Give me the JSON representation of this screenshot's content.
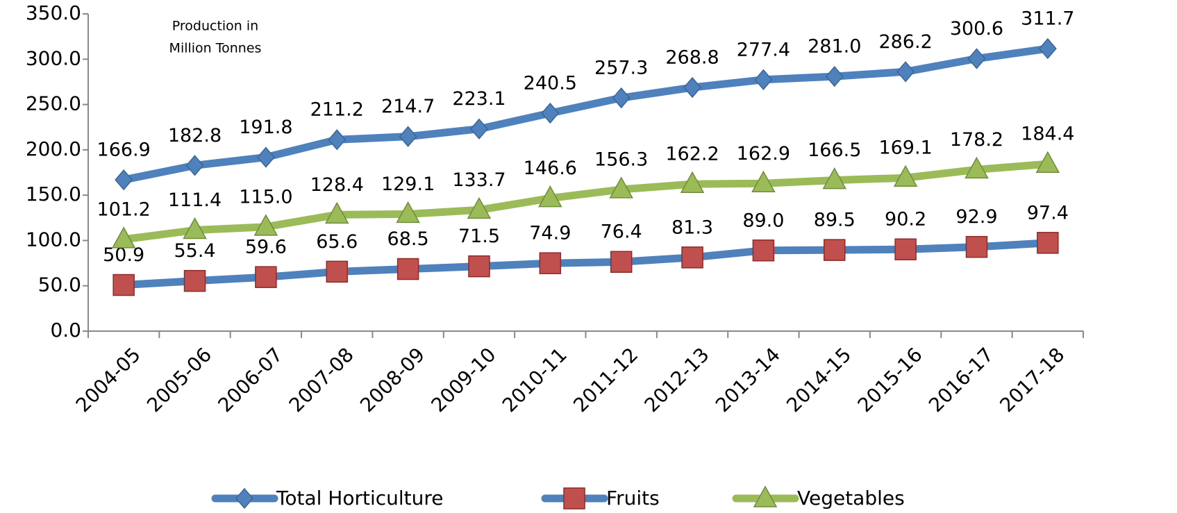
{
  "chart_data": {
    "type": "line",
    "annotation": [
      "Production in",
      "Million Tonnes"
    ],
    "categories": [
      "2004-05",
      "2005-06",
      "2006-07",
      "2007-08",
      "2008-09",
      "2009-10",
      "2010-11",
      "2011-12",
      "2012-13",
      "2013-14",
      "2014-15",
      "2015-16",
      "2016-17",
      "2017-18"
    ],
    "series": [
      {
        "name": "Total Horticulture",
        "color": "#4f81bd",
        "marker": "diamond",
        "marker_color": "#4f81bd",
        "values": [
          166.9,
          182.8,
          191.8,
          211.2,
          214.7,
          223.1,
          240.5,
          257.3,
          268.8,
          277.4,
          281.0,
          286.2,
          300.6,
          311.7
        ],
        "value_labels": [
          "166.9",
          "182.8",
          "191.8",
          "211.2",
          "214.7",
          "223.1",
          "240.5",
          "257.3",
          "268.8",
          "277.4",
          "281.0",
          "286.2",
          "300.6",
          "311.7"
        ]
      },
      {
        "name": "Fruits",
        "color": "#4f81bd",
        "marker": "square",
        "marker_color": "#c0504d",
        "values": [
          50.9,
          55.4,
          59.6,
          65.6,
          68.5,
          71.5,
          74.9,
          76.4,
          81.3,
          89.0,
          89.5,
          90.2,
          92.9,
          97.4
        ],
        "value_labels": [
          "50.9",
          "55.4",
          "59.6",
          "65.6",
          "68.5",
          "71.5",
          "74.9",
          "76.4",
          "81.3",
          "89.0",
          "89.5",
          "90.2",
          "92.9",
          "97.4"
        ]
      },
      {
        "name": "Vegetables",
        "color": "#9bbb59",
        "marker": "triangle",
        "marker_color": "#9bbb59",
        "values": [
          101.2,
          111.4,
          115.0,
          128.4,
          129.1,
          133.7,
          146.6,
          156.3,
          162.2,
          162.9,
          166.5,
          169.1,
          178.2,
          184.4
        ],
        "value_labels": [
          "101.2",
          "111.4",
          "115.0",
          "128.4",
          "129.1",
          "133.7",
          "146.6",
          "156.3",
          "162.2",
          "162.9",
          "166.5",
          "169.1",
          "178.2",
          "184.4"
        ]
      }
    ],
    "ylim": [
      0,
      350
    ],
    "yticks": [
      {
        "value": 0,
        "label": "0.0"
      },
      {
        "value": 50,
        "label": "50.0"
      },
      {
        "value": 100,
        "label": "100.0"
      },
      {
        "value": 150,
        "label": "150.0"
      },
      {
        "value": 200,
        "label": "200.0"
      },
      {
        "value": 250,
        "label": "250.0"
      },
      {
        "value": 300,
        "label": "300.0"
      },
      {
        "value": 350,
        "label": "350.0"
      }
    ],
    "grid": false,
    "legend": "bottom"
  }
}
